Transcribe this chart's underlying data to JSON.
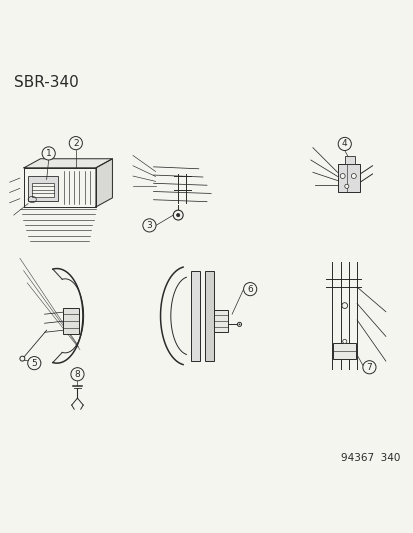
{
  "title": "SBR-340",
  "footer": "94367  340",
  "bg_color": "#f5f5f0",
  "line_color": "#2a2a2a",
  "title_fontsize": 11,
  "footer_fontsize": 7.5,
  "label_fontsize": 6.5,
  "label_circle_r": 0.016,
  "lw_main": 0.7,
  "lw_thick": 1.1,
  "lw_thin": 0.45
}
